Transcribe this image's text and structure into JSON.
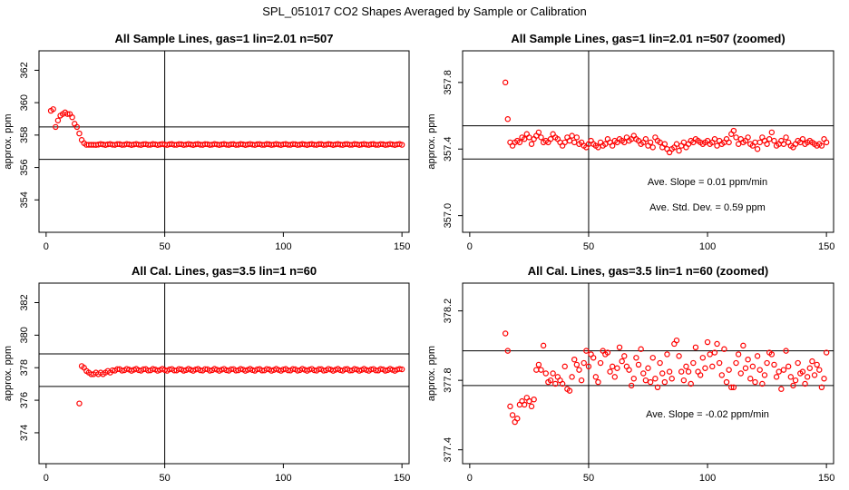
{
  "page_title": "SPL_051017  CO2 Shapes Averaged by Sample or Calibration",
  "chart_data": [
    {
      "type": "scatter",
      "title": "All Sample Lines, gas=1 lin=2.01 n=507",
      "xlabel": "",
      "ylabel": "approx. ppm",
      "xlim": [
        -3,
        153
      ],
      "ylim": [
        352.0,
        363.2
      ],
      "x_ticks": [
        0,
        50,
        100,
        150
      ],
      "y_ticks": [
        354,
        356,
        358,
        360,
        362
      ],
      "vline": 50,
      "hlines": [
        356.5,
        358.5
      ],
      "point_color": "#ff0000",
      "annotations": [],
      "points": [
        [
          2,
          359.5
        ],
        [
          3,
          359.6
        ],
        [
          4,
          358.5
        ],
        [
          5,
          358.9
        ],
        [
          6,
          359.2
        ],
        [
          7,
          359.3
        ],
        [
          8,
          359.4
        ],
        [
          9,
          359.3
        ],
        [
          10,
          359.3
        ],
        [
          11,
          359.1
        ],
        [
          12,
          358.7
        ],
        [
          13,
          358.5
        ],
        [
          14,
          358.1
        ],
        [
          15,
          357.7
        ],
        [
          16,
          357.5
        ],
        [
          17,
          357.4
        ],
        [
          18,
          357.4
        ],
        [
          19,
          357.4
        ],
        [
          20,
          357.4
        ],
        [
          150,
          357.4
        ]
      ],
      "constant_run": {
        "x_start": 21,
        "x_end": 149,
        "y": 357.42,
        "jitter": 0.03
      }
    },
    {
      "type": "scatter",
      "title": "All Sample Lines, gas=1 lin=2.01 n=507 (zoomed)",
      "xlabel": "",
      "ylabel": "approx. ppm",
      "xlim": [
        -3,
        153
      ],
      "ylim": [
        356.9,
        357.99
      ],
      "x_ticks": [
        0,
        50,
        100,
        150
      ],
      "y_ticks": [
        357.0,
        357.4,
        357.8
      ],
      "y_tick_labels": [
        "357.0",
        "357.4",
        "357.8"
      ],
      "vline": 50,
      "hlines": [
        357.34,
        357.54
      ],
      "point_color": "#ff0000",
      "annotations": [
        "Ave. Slope =  0.01  ppm/min",
        "Ave. Std. Dev. =  0.59  ppm"
      ],
      "points": [
        [
          15,
          357.8
        ],
        [
          16,
          357.58
        ],
        [
          17,
          357.44
        ],
        [
          18,
          357.42
        ],
        [
          19,
          357.44
        ],
        [
          20,
          357.45
        ],
        [
          21,
          357.44
        ],
        [
          22,
          357.47
        ],
        [
          23,
          357.46
        ],
        [
          24,
          357.49
        ],
        [
          25,
          357.47
        ],
        [
          26,
          357.43
        ],
        [
          27,
          357.46
        ],
        [
          28,
          357.48
        ],
        [
          29,
          357.5
        ],
        [
          30,
          357.47
        ],
        [
          31,
          357.44
        ],
        [
          32,
          357.45
        ],
        [
          33,
          357.44
        ],
        [
          34,
          357.46
        ],
        [
          35,
          357.49
        ],
        [
          36,
          357.47
        ],
        [
          37,
          357.46
        ],
        [
          38,
          357.44
        ],
        [
          39,
          357.42
        ],
        [
          40,
          357.44
        ],
        [
          41,
          357.47
        ],
        [
          42,
          357.45
        ],
        [
          43,
          357.48
        ],
        [
          44,
          357.44
        ],
        [
          45,
          357.47
        ],
        [
          46,
          357.43
        ],
        [
          47,
          357.44
        ],
        [
          48,
          357.42
        ],
        [
          49,
          357.41
        ],
        [
          50,
          357.43
        ],
        [
          51,
          357.45
        ],
        [
          52,
          357.43
        ],
        [
          53,
          357.42
        ],
        [
          54,
          357.41
        ],
        [
          55,
          357.44
        ],
        [
          56,
          357.42
        ],
        [
          57,
          357.43
        ],
        [
          58,
          357.46
        ],
        [
          59,
          357.44
        ],
        [
          60,
          357.42
        ],
        [
          61,
          357.45
        ],
        [
          62,
          357.44
        ],
        [
          63,
          357.46
        ],
        [
          64,
          357.45
        ],
        [
          65,
          357.44
        ],
        [
          66,
          357.47
        ],
        [
          67,
          357.45
        ],
        [
          68,
          357.46
        ],
        [
          69,
          357.48
        ],
        [
          70,
          357.46
        ],
        [
          71,
          357.45
        ],
        [
          72,
          357.43
        ],
        [
          73,
          357.44
        ],
        [
          74,
          357.46
        ],
        [
          75,
          357.42
        ],
        [
          76,
          357.44
        ],
        [
          77,
          357.41
        ],
        [
          78,
          357.47
        ],
        [
          79,
          357.45
        ],
        [
          80,
          357.44
        ],
        [
          81,
          357.41
        ],
        [
          82,
          357.43
        ],
        [
          83,
          357.4
        ],
        [
          84,
          357.38
        ],
        [
          85,
          357.4
        ],
        [
          86,
          357.41
        ],
        [
          87,
          357.43
        ],
        [
          88,
          357.39
        ],
        [
          89,
          357.42
        ],
        [
          90,
          357.44
        ],
        [
          91,
          357.41
        ],
        [
          92,
          357.43
        ],
        [
          93,
          357.45
        ],
        [
          94,
          357.44
        ],
        [
          95,
          357.46
        ],
        [
          96,
          357.45
        ],
        [
          97,
          357.44
        ],
        [
          98,
          357.43
        ],
        [
          99,
          357.44
        ],
        [
          100,
          357.45
        ],
        [
          101,
          357.43
        ],
        [
          102,
          357.44
        ],
        [
          103,
          357.46
        ],
        [
          104,
          357.42
        ],
        [
          105,
          357.45
        ],
        [
          106,
          357.43
        ],
        [
          107,
          357.44
        ],
        [
          108,
          357.46
        ],
        [
          109,
          357.44
        ],
        [
          110,
          357.49
        ],
        [
          111,
          357.51
        ],
        [
          112,
          357.47
        ],
        [
          113,
          357.43
        ],
        [
          114,
          357.46
        ],
        [
          115,
          357.44
        ],
        [
          116,
          357.45
        ],
        [
          117,
          357.47
        ],
        [
          118,
          357.43
        ],
        [
          119,
          357.42
        ],
        [
          120,
          357.44
        ],
        [
          121,
          357.4
        ],
        [
          122,
          357.44
        ],
        [
          123,
          357.47
        ],
        [
          124,
          357.45
        ],
        [
          125,
          357.43
        ],
        [
          126,
          357.46
        ],
        [
          127,
          357.5
        ],
        [
          128,
          357.45
        ],
        [
          129,
          357.42
        ],
        [
          130,
          357.43
        ],
        [
          131,
          357.45
        ],
        [
          132,
          357.43
        ],
        [
          133,
          357.47
        ],
        [
          134,
          357.44
        ],
        [
          135,
          357.42
        ],
        [
          136,
          357.41
        ],
        [
          137,
          357.43
        ],
        [
          138,
          357.45
        ],
        [
          139,
          357.44
        ],
        [
          140,
          357.46
        ],
        [
          141,
          357.43
        ],
        [
          142,
          357.44
        ],
        [
          143,
          357.45
        ],
        [
          144,
          357.44
        ],
        [
          145,
          357.43
        ],
        [
          146,
          357.42
        ],
        [
          147,
          357.43
        ],
        [
          148,
          357.42
        ],
        [
          149,
          357.46
        ],
        [
          150,
          357.44
        ]
      ]
    },
    {
      "type": "scatter",
      "title": "All Cal. Lines, gas=3.5 lin=1 n=60",
      "xlabel": "",
      "ylabel": "approx. ppm",
      "xlim": [
        -3,
        153
      ],
      "ylim": [
        372.1,
        383.2
      ],
      "x_ticks": [
        0,
        50,
        100,
        150
      ],
      "y_ticks": [
        374,
        376,
        378,
        380,
        382
      ],
      "vline": 50,
      "hlines": [
        376.85,
        378.85
      ],
      "point_color": "#ff0000",
      "annotations": [],
      "points": [
        [
          14,
          375.8
        ],
        [
          15,
          378.1
        ],
        [
          16,
          378.0
        ],
        [
          17,
          377.8
        ],
        [
          18,
          377.7
        ],
        [
          19,
          377.6
        ],
        [
          20,
          377.6
        ],
        [
          21,
          377.7
        ],
        [
          22,
          377.6
        ],
        [
          23,
          377.7
        ],
        [
          24,
          377.6
        ],
        [
          25,
          377.7
        ],
        [
          26,
          377.8
        ],
        [
          27,
          377.7
        ],
        [
          150,
          377.9
        ]
      ],
      "constant_run": {
        "x_start": 28,
        "x_end": 149,
        "y": 377.87,
        "jitter": 0.06
      }
    },
    {
      "type": "scatter",
      "title": "All Cal. Lines, gas=3.5 lin=1 n=60 (zoomed)",
      "xlabel": "",
      "ylabel": "approx. ppm",
      "xlim": [
        -3,
        153
      ],
      "ylim": [
        377.32,
        378.36
      ],
      "x_ticks": [
        0,
        50,
        100,
        150
      ],
      "y_ticks": [
        377.4,
        377.8,
        378.2
      ],
      "y_tick_labels": [
        "377.4",
        "377.8",
        "378.2"
      ],
      "vline": 50,
      "hlines": [
        377.77,
        377.97
      ],
      "point_color": "#ff0000",
      "annotations": [
        "Ave. Slope =  -0.02  ppm/min"
      ],
      "points": [
        [
          15,
          378.07
        ],
        [
          16,
          377.97
        ],
        [
          17,
          377.65
        ],
        [
          18,
          377.6
        ],
        [
          19,
          377.56
        ],
        [
          20,
          377.58
        ],
        [
          21,
          377.66
        ],
        [
          22,
          377.68
        ],
        [
          23,
          377.66
        ],
        [
          24,
          377.7
        ],
        [
          25,
          377.68
        ],
        [
          26,
          377.65
        ],
        [
          27,
          377.69
        ],
        [
          28,
          377.86
        ],
        [
          29,
          377.89
        ],
        [
          30,
          377.86
        ],
        [
          31,
          378.0
        ],
        [
          32,
          377.84
        ],
        [
          33,
          377.79
        ],
        [
          34,
          377.8
        ],
        [
          35,
          377.84
        ],
        [
          36,
          377.78
        ],
        [
          37,
          377.82
        ],
        [
          38,
          377.8
        ],
        [
          39,
          377.78
        ],
        [
          40,
          377.88
        ],
        [
          41,
          377.75
        ],
        [
          42,
          377.74
        ],
        [
          43,
          377.82
        ],
        [
          44,
          377.92
        ],
        [
          45,
          377.89
        ],
        [
          46,
          377.86
        ],
        [
          47,
          377.8
        ],
        [
          48,
          377.9
        ],
        [
          49,
          377.97
        ],
        [
          50,
          377.88
        ],
        [
          51,
          377.95
        ],
        [
          52,
          377.93
        ],
        [
          53,
          377.82
        ],
        [
          54,
          377.79
        ],
        [
          55,
          377.9
        ],
        [
          56,
          377.97
        ],
        [
          57,
          377.95
        ],
        [
          58,
          377.96
        ],
        [
          59,
          377.85
        ],
        [
          60,
          377.88
        ],
        [
          61,
          377.82
        ],
        [
          62,
          377.87
        ],
        [
          63,
          377.99
        ],
        [
          64,
          377.91
        ],
        [
          65,
          377.94
        ],
        [
          66,
          377.88
        ],
        [
          67,
          377.86
        ],
        [
          68,
          377.77
        ],
        [
          69,
          377.81
        ],
        [
          70,
          377.93
        ],
        [
          71,
          377.89
        ],
        [
          72,
          377.98
        ],
        [
          73,
          377.84
        ],
        [
          74,
          377.8
        ],
        [
          75,
          377.87
        ],
        [
          76,
          377.79
        ],
        [
          77,
          377.93
        ],
        [
          78,
          377.81
        ],
        [
          79,
          377.76
        ],
        [
          80,
          377.9
        ],
        [
          81,
          377.84
        ],
        [
          82,
          377.79
        ],
        [
          83,
          377.95
        ],
        [
          84,
          377.85
        ],
        [
          85,
          377.81
        ],
        [
          86,
          378.01
        ],
        [
          87,
          378.03
        ],
        [
          88,
          377.94
        ],
        [
          89,
          377.85
        ],
        [
          90,
          377.8
        ],
        [
          91,
          377.88
        ],
        [
          92,
          377.85
        ],
        [
          93,
          377.78
        ],
        [
          94,
          377.9
        ],
        [
          95,
          377.99
        ],
        [
          96,
          377.85
        ],
        [
          97,
          377.83
        ],
        [
          98,
          377.93
        ],
        [
          99,
          377.87
        ],
        [
          100,
          378.02
        ],
        [
          101,
          377.95
        ],
        [
          102,
          377.88
        ],
        [
          103,
          377.96
        ],
        [
          104,
          378.01
        ],
        [
          105,
          377.9
        ],
        [
          106,
          377.83
        ],
        [
          107,
          377.98
        ],
        [
          108,
          377.79
        ],
        [
          109,
          377.86
        ],
        [
          110,
          377.76
        ],
        [
          111,
          377.76
        ],
        [
          112,
          377.9
        ],
        [
          113,
          377.95
        ],
        [
          114,
          377.84
        ],
        [
          115,
          378.0
        ],
        [
          116,
          377.87
        ],
        [
          117,
          377.92
        ],
        [
          118,
          377.81
        ],
        [
          119,
          377.88
        ],
        [
          120,
          377.79
        ],
        [
          121,
          377.94
        ],
        [
          122,
          377.86
        ],
        [
          123,
          377.78
        ],
        [
          124,
          377.83
        ],
        [
          125,
          377.9
        ],
        [
          126,
          377.96
        ],
        [
          127,
          377.95
        ],
        [
          128,
          377.89
        ],
        [
          129,
          377.82
        ],
        [
          130,
          377.85
        ],
        [
          131,
          377.75
        ],
        [
          132,
          377.86
        ],
        [
          133,
          377.97
        ],
        [
          134,
          377.88
        ],
        [
          135,
          377.82
        ],
        [
          136,
          377.77
        ],
        [
          137,
          377.8
        ],
        [
          138,
          377.9
        ],
        [
          139,
          377.84
        ],
        [
          140,
          377.85
        ],
        [
          141,
          377.78
        ],
        [
          142,
          377.82
        ],
        [
          143,
          377.87
        ],
        [
          144,
          377.91
        ],
        [
          145,
          377.83
        ],
        [
          146,
          377.89
        ],
        [
          147,
          377.86
        ],
        [
          148,
          377.76
        ],
        [
          149,
          377.81
        ],
        [
          150,
          377.96
        ]
      ]
    }
  ]
}
